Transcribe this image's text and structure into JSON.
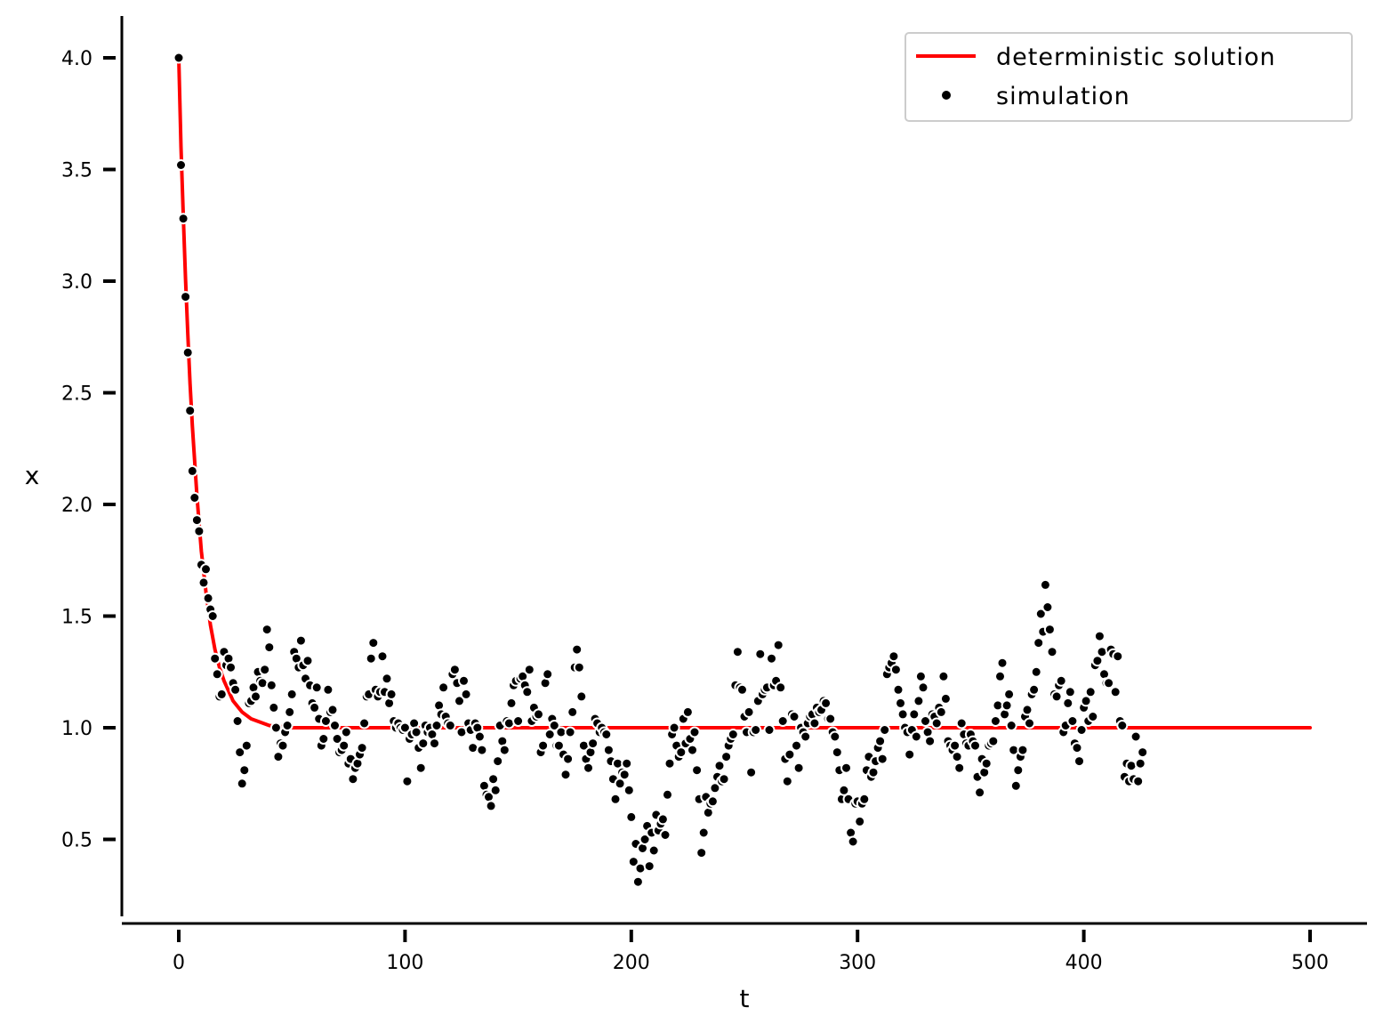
{
  "chart_data": {
    "type": "scatter",
    "xlabel": "t",
    "ylabel": "x",
    "xlim": [
      -25,
      525
    ],
    "ylim": [
      0.13,
      4.18
    ],
    "xticks": [
      "0",
      "100",
      "200",
      "300",
      "400",
      "500"
    ],
    "yticks": [
      "0.5",
      "1.0",
      "1.5",
      "2.0",
      "2.5",
      "3.0",
      "3.5",
      "4.0"
    ],
    "grid": false,
    "legend_position": "top-right",
    "colors": {
      "deterministic": "#ff0000",
      "simulation": "#000000",
      "marker_edge": "#ffffff"
    },
    "series": [
      {
        "name": "deterministic solution",
        "kind": "line",
        "model": "x(t) = 1 + 3*exp(-t/7.5)",
        "x": [
          0,
          1,
          2,
          3,
          4,
          5,
          6,
          8,
          10,
          12,
          14,
          16,
          18,
          20,
          24,
          28,
          32,
          40,
          50,
          60,
          80,
          100,
          150,
          200,
          250,
          300,
          350,
          400,
          450,
          500
        ],
        "values": [
          4.0,
          3.6,
          3.29,
          3.01,
          2.76,
          2.54,
          2.35,
          2.04,
          1.79,
          1.61,
          1.46,
          1.35,
          1.27,
          1.21,
          1.12,
          1.07,
          1.04,
          1.01,
          1.0,
          1.0,
          1.0,
          1.0,
          1.0,
          1.0,
          1.0,
          1.0,
          1.0,
          1.0,
          1.0,
          1.0
        ]
      },
      {
        "name": "simulation",
        "kind": "scatter",
        "x_start": 0,
        "x_step": 1,
        "values": [
          4.0,
          3.52,
          3.28,
          2.93,
          2.68,
          2.42,
          2.15,
          2.03,
          1.93,
          1.88,
          1.73,
          1.65,
          1.71,
          1.58,
          1.53,
          1.5,
          1.31,
          1.24,
          1.14,
          1.15,
          1.34,
          1.28,
          1.31,
          1.27,
          1.2,
          1.17,
          1.03,
          0.89,
          0.75,
          0.81,
          0.92,
          1.11,
          1.12,
          1.18,
          1.14,
          1.25,
          1.21,
          1.2,
          1.26,
          1.44,
          1.36,
          1.19,
          1.09,
          1.0,
          0.87,
          0.93,
          0.92,
          0.98,
          1.01,
          1.07,
          1.15,
          1.34,
          1.31,
          1.27,
          1.39,
          1.28,
          1.22,
          1.3,
          1.19,
          1.11,
          1.09,
          1.18,
          1.04,
          0.92,
          0.95,
          1.03,
          1.17,
          1.07,
          1.08,
          1.01,
          0.95,
          0.89,
          0.9,
          0.92,
          0.98,
          0.84,
          0.86,
          0.77,
          0.82,
          0.84,
          0.88,
          0.91,
          1.02,
          1.14,
          1.15,
          1.31,
          1.38,
          1.17,
          1.14,
          1.16,
          1.32,
          1.16,
          1.22,
          1.11,
          1.15,
          1.03,
          1.0,
          1.02,
          1.0,
          0.99,
          1.0,
          0.76,
          0.95,
          0.97,
          1.02,
          0.98,
          0.91,
          0.82,
          0.93,
          1.01,
          0.98,
          1.0,
          0.97,
          0.93,
          1.01,
          1.1,
          1.06,
          1.18,
          1.05,
          1.02,
          1.01,
          1.24,
          1.26,
          1.2,
          1.12,
          0.98,
          1.21,
          1.15,
          1.02,
          0.99,
          0.91,
          1.02,
          1.0,
          0.96,
          0.9,
          0.74,
          0.7,
          0.69,
          0.65,
          0.77,
          0.72,
          0.85,
          1.01,
          0.94,
          0.9,
          1.03,
          1.02,
          1.11,
          1.19,
          1.21,
          1.03,
          1.22,
          1.23,
          1.19,
          1.16,
          1.26,
          1.03,
          1.09,
          1.05,
          1.06,
          0.89,
          0.92,
          1.2,
          1.24,
          0.97,
          1.04,
          1.01,
          0.92,
          0.92,
          0.98,
          0.88,
          0.79,
          0.86,
          0.98,
          1.07,
          1.27,
          1.35,
          1.27,
          1.14,
          0.92,
          0.86,
          0.82,
          0.89,
          0.93,
          1.04,
          1.02,
          0.98,
          1.0,
          0.98,
          0.97,
          0.9,
          0.85,
          0.77,
          0.68,
          0.84,
          0.75,
          0.8,
          0.79,
          0.84,
          0.72,
          0.6,
          0.4,
          0.48,
          0.31,
          0.37,
          0.46,
          0.5,
          0.56,
          0.38,
          0.53,
          0.45,
          0.61,
          0.54,
          0.57,
          0.59,
          0.52,
          0.7,
          0.84,
          0.97,
          1.0,
          0.92,
          0.87,
          0.89,
          1.04,
          0.93,
          1.07,
          0.95,
          0.9,
          0.98,
          0.81,
          0.68,
          0.44,
          0.53,
          0.69,
          0.62,
          0.66,
          0.67,
          0.73,
          0.78,
          0.83,
          0.76,
          0.77,
          0.87,
          0.92,
          0.95,
          0.97,
          1.19,
          1.34,
          1.18,
          1.17,
          1.05,
          0.98,
          1.07,
          0.8,
          0.98,
          0.99,
          1.12,
          1.33,
          1.15,
          1.17,
          1.18,
          0.99,
          1.31,
          1.19,
          1.21,
          1.37,
          1.18,
          1.03,
          0.86,
          0.76,
          0.88,
          1.06,
          1.05,
          0.92,
          0.82,
          1.0,
          0.98,
          0.96,
          1.02,
          1.05,
          1.06,
          1.02,
          1.09,
          1.07,
          1.08,
          1.12,
          1.11,
          1.04,
          1.04,
          0.98,
          0.96,
          0.89,
          0.81,
          0.68,
          0.72,
          0.82,
          0.68,
          0.53,
          0.49,
          0.66,
          0.67,
          0.58,
          0.66,
          0.68,
          0.81,
          0.87,
          0.78,
          0.8,
          0.85,
          0.91,
          0.94,
          0.86,
          0.99,
          1.24,
          1.27,
          1.29,
          1.32,
          1.26,
          1.17,
          1.11,
          1.06,
          1.0,
          0.98,
          0.88,
          0.99,
          1.06,
          0.96,
          1.12,
          1.23,
          1.18,
          1.03,
          0.98,
          0.94,
          1.06,
          1.05,
          1.02,
          1.09,
          1.07,
          1.23,
          1.13,
          0.94,
          0.92,
          0.9,
          0.92,
          0.87,
          0.82,
          1.02,
          0.97,
          0.93,
          0.92,
          0.97,
          0.94,
          0.92,
          0.78,
          0.71,
          0.86,
          0.8,
          0.84,
          0.92,
          0.93,
          0.94,
          1.03,
          1.1,
          1.23,
          1.29,
          1.06,
          1.1,
          1.15,
          1.01,
          0.9,
          0.74,
          0.81,
          0.87,
          0.9,
          1.05,
          1.08,
          1.02,
          1.15,
          1.17,
          1.25,
          1.38,
          1.51,
          1.43,
          1.64,
          1.54,
          1.44,
          1.34,
          1.15,
          1.14,
          1.19,
          1.21,
          0.98,
          1.01,
          1.11,
          1.16,
          1.03,
          0.93,
          0.91,
          0.85,
          0.99,
          1.09,
          1.12,
          1.03,
          1.16,
          1.05,
          1.28,
          1.3,
          1.41,
          1.34,
          1.24,
          1.2,
          1.2,
          1.35,
          1.33,
          1.16,
          1.32,
          1.03,
          1.01,
          0.78,
          0.84,
          0.76,
          0.83,
          0.77,
          0.96,
          0.76,
          0.84,
          0.89
        ]
      }
    ]
  }
}
